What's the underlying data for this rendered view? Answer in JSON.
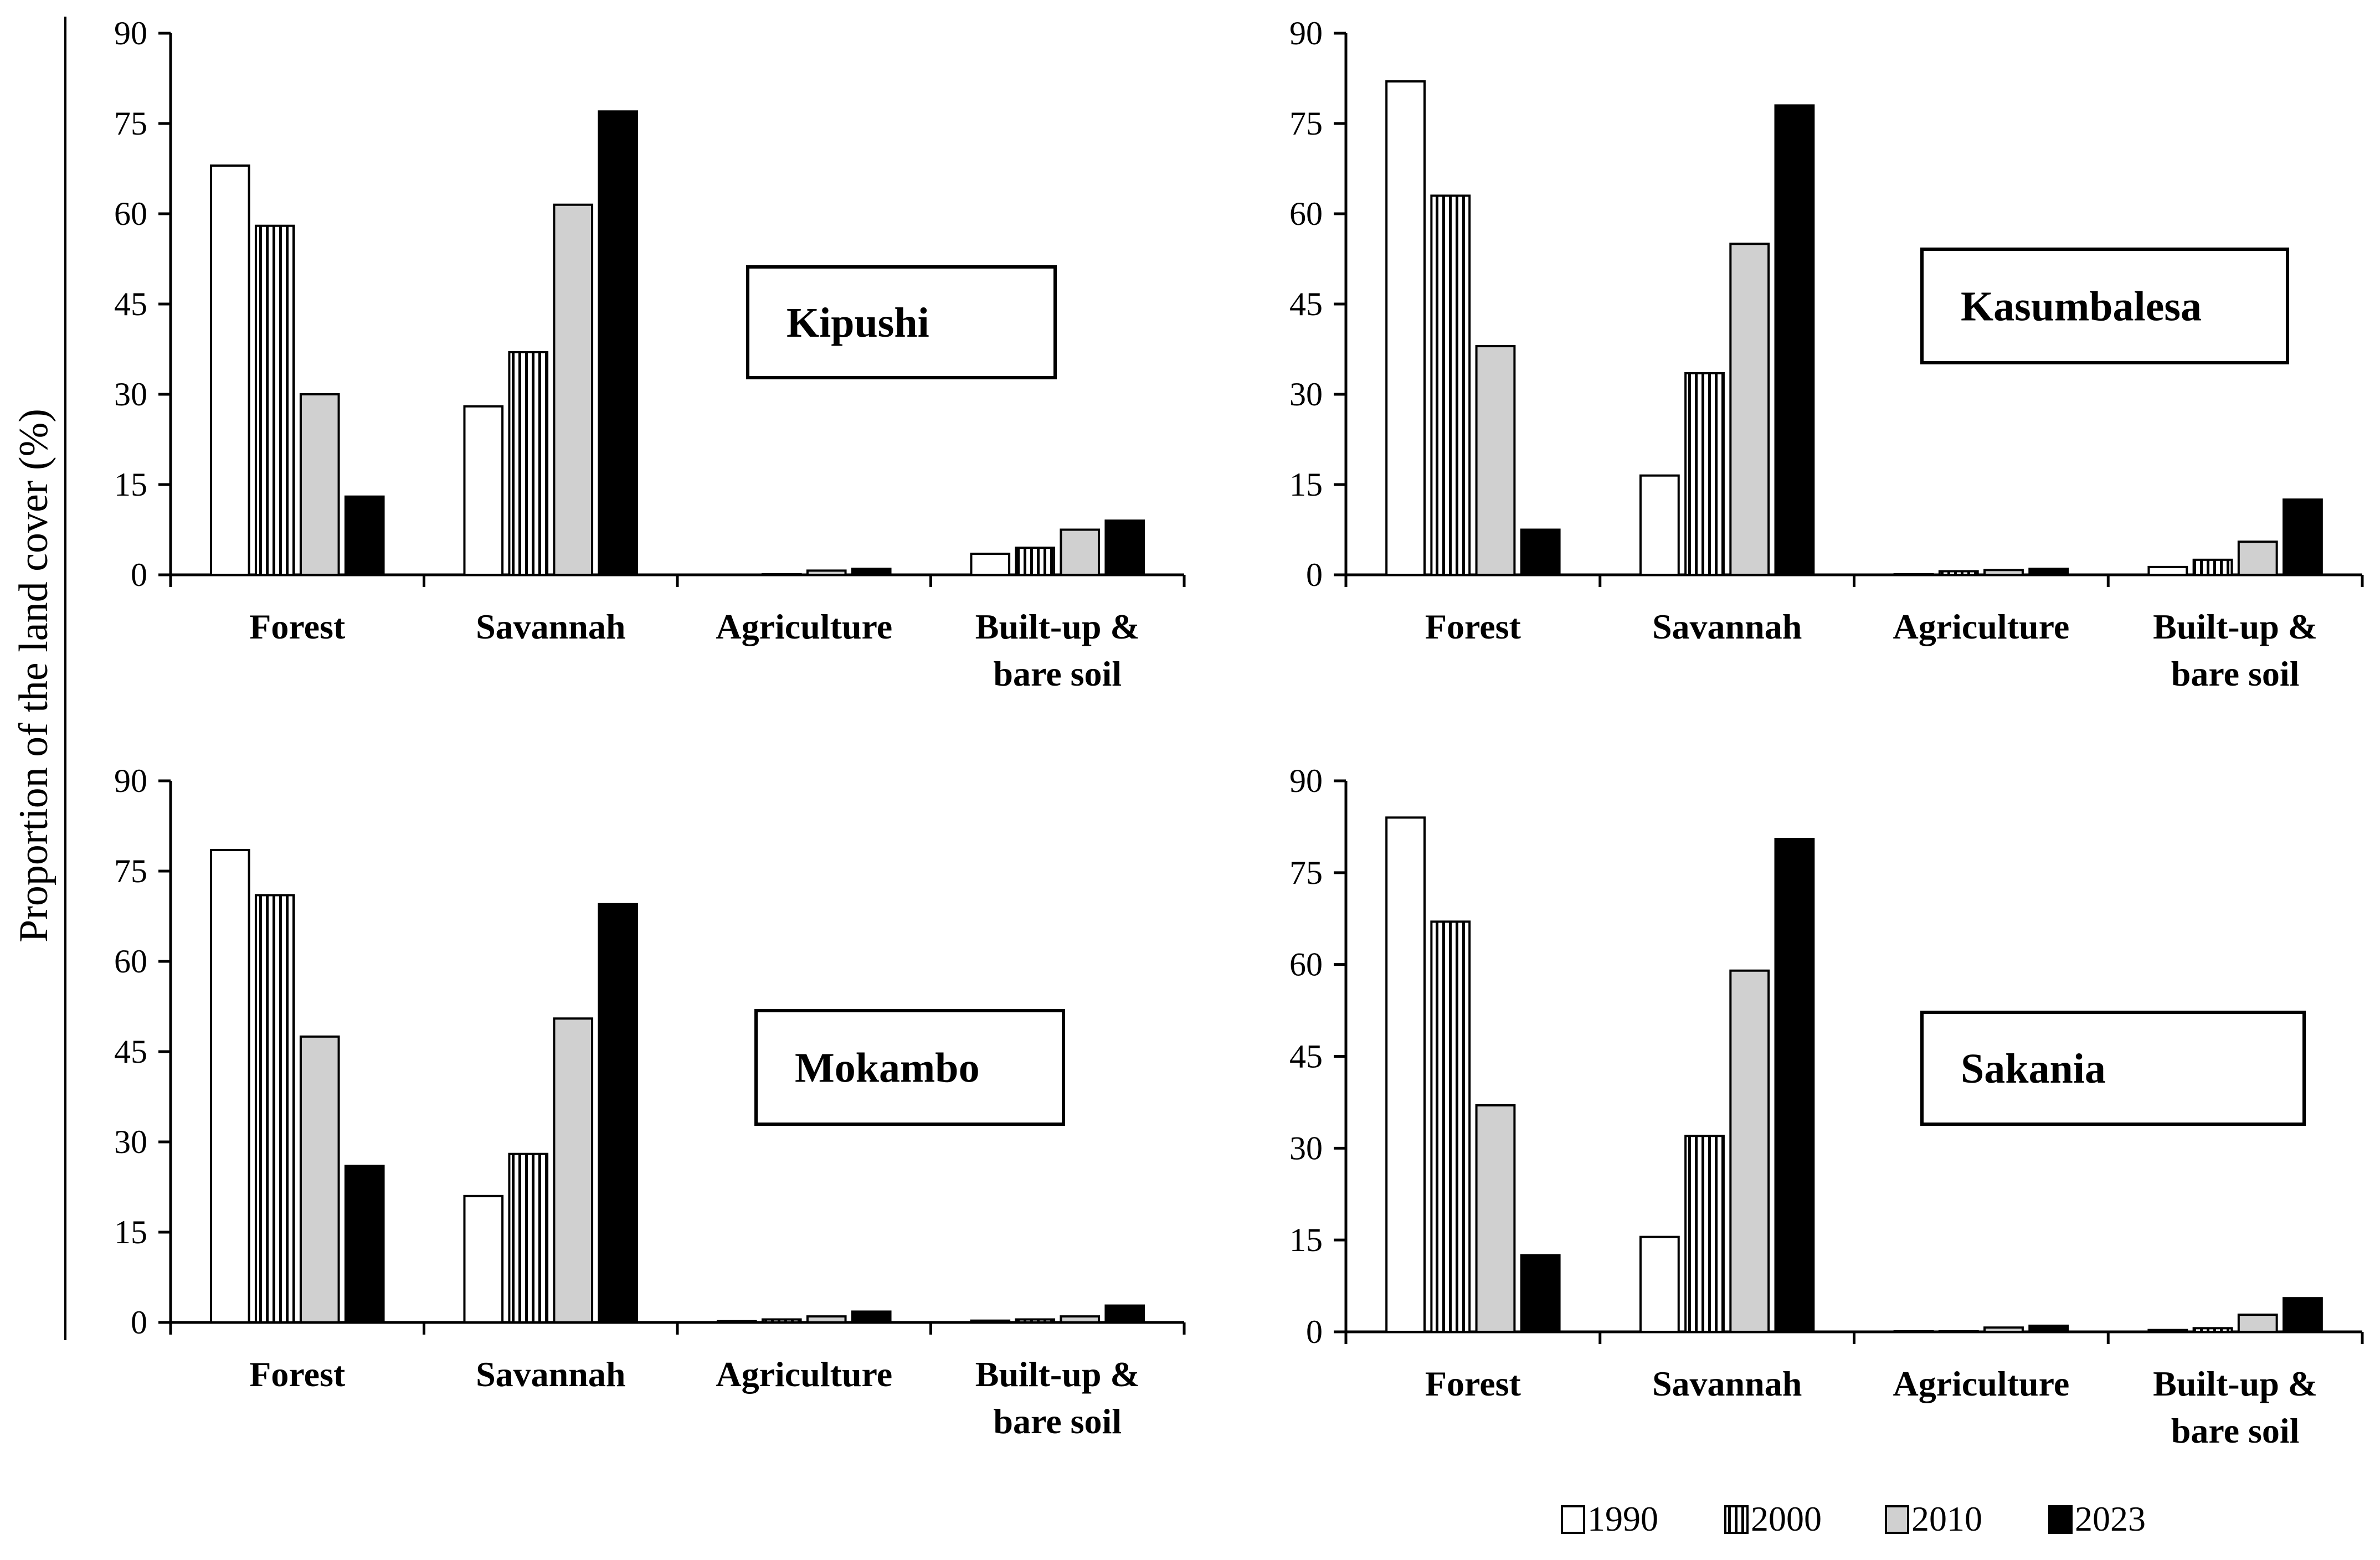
{
  "figure": {
    "ylabel": "Proportion of the land cover (%)",
    "series_styles": [
      {
        "name": "1990",
        "fill": "#ffffff",
        "pattern": "none"
      },
      {
        "name": "2000",
        "fill": "#ffffff",
        "pattern": "vertical-stripes"
      },
      {
        "name": "2010",
        "fill": "#d0d0d0",
        "pattern": "none"
      },
      {
        "name": "2023",
        "fill": "#000000",
        "pattern": "none"
      }
    ]
  },
  "legend": {
    "items": [
      {
        "label": "1990"
      },
      {
        "label": "2000"
      },
      {
        "label": "2010"
      },
      {
        "label": "2023"
      }
    ]
  },
  "chart_data": [
    {
      "type": "bar",
      "title": "Kipushi",
      "categories": [
        "Forest",
        "Savannah",
        "Agriculture",
        "Built-up &\nbare soil"
      ],
      "ylim": [
        0,
        90
      ],
      "yticks": [
        0,
        15,
        30,
        45,
        60,
        75,
        90
      ],
      "ylabel": "Proportion of the land cover (%)",
      "series": [
        {
          "name": "1990",
          "values": [
            68,
            28,
            0,
            3.5
          ]
        },
        {
          "name": "2000",
          "values": [
            58,
            37,
            0.1,
            4.5
          ]
        },
        {
          "name": "2010",
          "values": [
            30,
            61.5,
            0.7,
            7.5
          ]
        },
        {
          "name": "2023",
          "values": [
            13,
            77,
            1,
            9
          ]
        }
      ]
    },
    {
      "type": "bar",
      "title": "Kasumbalesa",
      "categories": [
        "Forest",
        "Savannah",
        "Agriculture",
        "Built-up &\nbare soil"
      ],
      "ylim": [
        0,
        90
      ],
      "yticks": [
        0,
        15,
        30,
        45,
        60,
        75,
        90
      ],
      "ylabel": "Proportion of the land cover (%)",
      "series": [
        {
          "name": "1990",
          "values": [
            82,
            16.5,
            0.1,
            1.3
          ]
        },
        {
          "name": "2000",
          "values": [
            63,
            33.5,
            0.6,
            2.5
          ]
        },
        {
          "name": "2010",
          "values": [
            38,
            55,
            0.8,
            5.5
          ]
        },
        {
          "name": "2023",
          "values": [
            7.5,
            78,
            1,
            12.5
          ]
        }
      ]
    },
    {
      "type": "bar",
      "title": "Mokambo",
      "categories": [
        "Forest",
        "Savannah",
        "Agriculture",
        "Built-up &\nbare soil"
      ],
      "ylim": [
        0,
        90
      ],
      "yticks": [
        0,
        15,
        30,
        45,
        60,
        75,
        90
      ],
      "ylabel": "Proportion of the land cover (%)",
      "series": [
        {
          "name": "1990",
          "values": [
            78.5,
            21,
            0.2,
            0.3
          ]
        },
        {
          "name": "2000",
          "values": [
            71,
            28,
            0.5,
            0.5
          ]
        },
        {
          "name": "2010",
          "values": [
            47.5,
            50.5,
            1,
            1
          ]
        },
        {
          "name": "2023",
          "values": [
            26,
            69.5,
            1.8,
            2.8
          ]
        }
      ]
    },
    {
      "type": "bar",
      "title": "Sakania",
      "categories": [
        "Forest",
        "Savannah",
        "Agriculture",
        "Built-up &\nbare soil"
      ],
      "ylim": [
        0,
        90
      ],
      "yticks": [
        0,
        15,
        30,
        45,
        60,
        75,
        90
      ],
      "ylabel": "Proportion of the land cover (%)",
      "series": [
        {
          "name": "1990",
          "values": [
            84,
            15.5,
            0.1,
            0.3
          ]
        },
        {
          "name": "2000",
          "values": [
            67,
            32,
            0.1,
            0.6
          ]
        },
        {
          "name": "2010",
          "values": [
            37,
            59,
            0.7,
            2.8
          ]
        },
        {
          "name": "2023",
          "values": [
            12.5,
            80.5,
            1,
            5.5
          ]
        }
      ]
    }
  ]
}
